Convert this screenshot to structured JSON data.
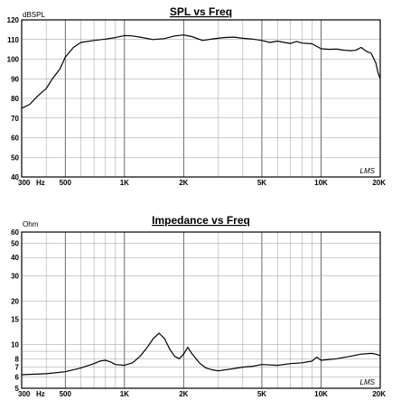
{
  "chart_data": [
    {
      "type": "line",
      "title": "SPL vs Freq",
      "ylabel": "dBSPL",
      "xscale": "log",
      "xlim": [
        300,
        20000
      ],
      "ylim": [
        40,
        120
      ],
      "grid": true,
      "xticks": [
        {
          "v": 300,
          "label": "300"
        },
        {
          "v": 500,
          "label": "500"
        },
        {
          "v": 1000,
          "label": "1K"
        },
        {
          "v": 2000,
          "label": "2K"
        },
        {
          "v": 5000,
          "label": "5K"
        },
        {
          "v": 10000,
          "label": "10K"
        },
        {
          "v": 20000,
          "label": "20K"
        }
      ],
      "x_unit_label": "Hz",
      "yticks": [
        40,
        50,
        60,
        70,
        80,
        90,
        100,
        110,
        120
      ],
      "watermark": "LMS",
      "series": [
        {
          "x": [
            300,
            330,
            360,
            400,
            430,
            470,
            500,
            550,
            600,
            700,
            800,
            900,
            1000,
            1100,
            1200,
            1400,
            1600,
            1800,
            2000,
            2200,
            2500,
            2800,
            3200,
            3600,
            4000,
            4500,
            5000,
            5500,
            6000,
            6500,
            7000,
            7500,
            8000,
            9000,
            10000,
            11000,
            12000,
            13000,
            14000,
            15000,
            16000,
            17000,
            18000,
            19000,
            19500,
            20000
          ],
          "y": [
            75,
            77,
            81,
            85,
            90,
            95,
            101,
            106,
            108.5,
            109.5,
            110.2,
            111,
            112,
            111.8,
            111.2,
            110,
            110.5,
            111.8,
            112.3,
            111.5,
            109.5,
            110.3,
            111,
            111.2,
            110.6,
            110.2,
            109.5,
            108.5,
            109.2,
            108.5,
            108,
            109,
            108.2,
            107.8,
            105.3,
            105,
            105.1,
            104.6,
            104.3,
            104.5,
            106,
            104,
            103,
            98,
            93,
            90
          ]
        }
      ]
    },
    {
      "type": "line",
      "title": "Impedance vs Freq",
      "ylabel": "Ohm",
      "xscale": "log",
      "yscale": "log",
      "xlim": [
        300,
        20000
      ],
      "ylim": [
        5,
        60
      ],
      "grid": true,
      "xticks": [
        {
          "v": 300,
          "label": "300"
        },
        {
          "v": 500,
          "label": "500"
        },
        {
          "v": 1000,
          "label": "1K"
        },
        {
          "v": 2000,
          "label": "2K"
        },
        {
          "v": 5000,
          "label": "5K"
        },
        {
          "v": 10000,
          "label": "10K"
        },
        {
          "v": 20000,
          "label": "20K"
        }
      ],
      "x_unit_label": "Hz",
      "yticks": [
        5,
        6,
        7,
        8,
        10,
        15,
        20,
        30,
        40,
        50,
        60
      ],
      "watermark": "LMS",
      "series": [
        {
          "x": [
            300,
            400,
            500,
            600,
            700,
            750,
            800,
            850,
            900,
            1000,
            1100,
            1200,
            1300,
            1400,
            1500,
            1600,
            1700,
            1800,
            1900,
            2000,
            2100,
            2200,
            2400,
            2600,
            2800,
            3000,
            3500,
            4000,
            4500,
            5000,
            6000,
            7000,
            8000,
            9000,
            9500,
            10000,
            11000,
            12000,
            14000,
            16000,
            18000,
            19000,
            20000
          ],
          "y": [
            6.2,
            6.3,
            6.5,
            6.9,
            7.4,
            7.7,
            7.8,
            7.6,
            7.3,
            7.2,
            7.5,
            8.3,
            9.5,
            11,
            12,
            11,
            9.3,
            8.3,
            8,
            8.6,
            9.6,
            8.7,
            7.5,
            6.9,
            6.7,
            6.6,
            6.8,
            7,
            7.1,
            7.3,
            7.2,
            7.4,
            7.5,
            7.7,
            8.2,
            7.8,
            7.9,
            8,
            8.3,
            8.6,
            8.7,
            8.6,
            8.4
          ]
        }
      ]
    }
  ]
}
